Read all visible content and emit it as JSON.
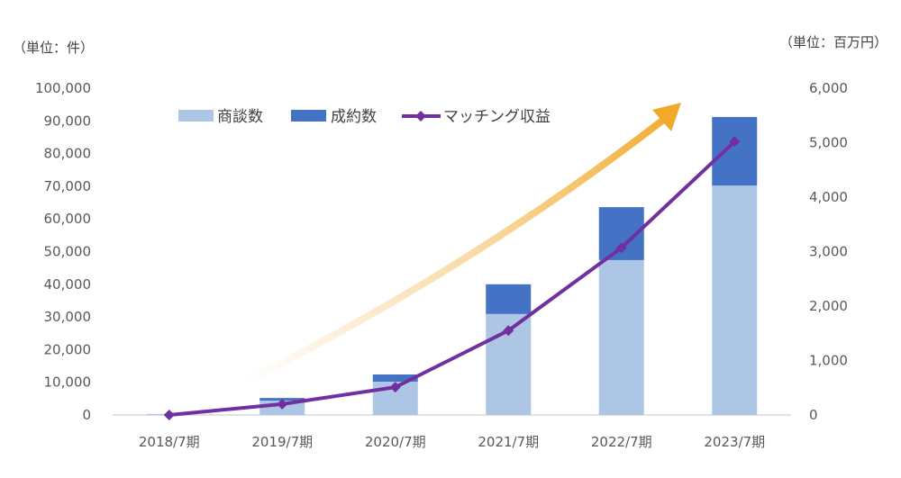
{
  "chart_data": {
    "type": "bar",
    "subtype": "stacked-bar-with-line-secondary-axis",
    "title": "",
    "categories": [
      "2018/7期",
      "2019/7期",
      "2020/7期",
      "2021/7期",
      "2022/7期",
      "2023/7期"
    ],
    "series": [
      {
        "name": "商談数",
        "type": "bar",
        "stack": "deals",
        "axis": "left",
        "color": "#ADC6E5",
        "values": [
          300,
          4400,
          10200,
          30900,
          47400,
          70200
        ]
      },
      {
        "name": "成約数",
        "type": "bar",
        "stack": "deals",
        "axis": "left",
        "color": "#4472C4",
        "values": [
          0,
          800,
          2200,
          9100,
          16200,
          21000
        ]
      },
      {
        "name": "マッチング収益",
        "type": "line",
        "axis": "right",
        "color": "#7030A0",
        "marker": "diamond",
        "values": [
          0,
          200,
          510,
          1550,
          3070,
          5020
        ]
      }
    ],
    "left_axis": {
      "unit_label": "（単位：件）",
      "ylim": [
        0,
        100000
      ],
      "ticks": [
        "0",
        "10,000",
        "20,000",
        "30,000",
        "40,000",
        "50,000",
        "60,000",
        "70,000",
        "80,000",
        "90,000",
        "100,000"
      ]
    },
    "right_axis": {
      "unit_label": "（単位：百万円）",
      "ylim": [
        0,
        6000
      ],
      "ticks": [
        "0",
        "1,000",
        "2,000",
        "3,000",
        "4,000",
        "5,000",
        "6,000"
      ]
    },
    "legend": {
      "position": "top-left-inside",
      "items": [
        {
          "label": "商談数",
          "swatch": "bar",
          "color": "#ADC6E5"
        },
        {
          "label": "成約数",
          "swatch": "bar",
          "color": "#4472C4"
        },
        {
          "label": "マッチング収益",
          "swatch": "line-diamond",
          "color": "#7030A0"
        }
      ]
    },
    "annotations": [
      {
        "type": "growth-arrow",
        "color": "#F0A928",
        "description": "gradient curved arrow pointing upper-right"
      }
    ],
    "grid": false,
    "xlabel": "",
    "ylabel": "件",
    "y2label": "百万円"
  }
}
